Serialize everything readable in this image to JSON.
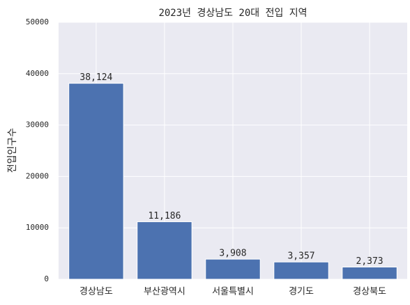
{
  "chart_data": {
    "type": "bar",
    "title": "2023년 경상남도 20대 전입 지역",
    "ylabel": "전입인구수",
    "categories": [
      "경상남도",
      "부산광역시",
      "서울특별시",
      "경기도",
      "경상북도"
    ],
    "values": [
      38124,
      11186,
      3908,
      3357,
      2373
    ],
    "value_labels": [
      "38,124",
      "11,186",
      "3,908",
      "3,357",
      "2,373"
    ],
    "color": "#4c72b0",
    "ylim": [
      0,
      50000
    ],
    "yticks": [
      0,
      10000,
      20000,
      30000,
      40000,
      50000
    ],
    "grid": true
  }
}
